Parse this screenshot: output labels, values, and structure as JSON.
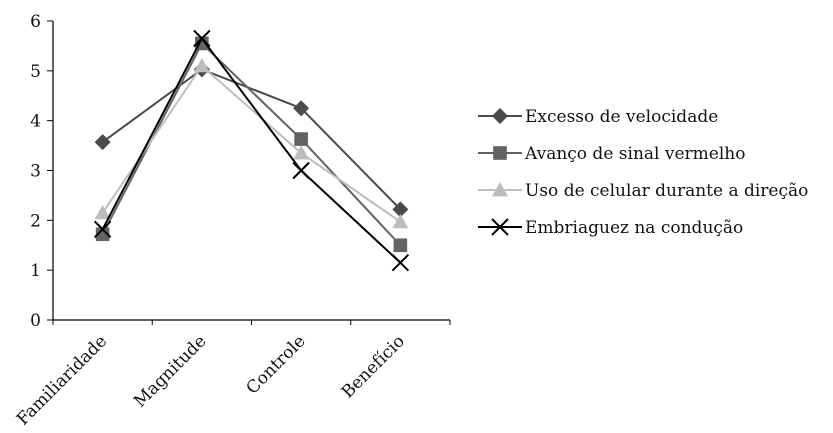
{
  "chart_data": {
    "type": "line",
    "categories": [
      "Familiaridade",
      "Magnitude",
      "Controle",
      "Benefício"
    ],
    "ylim": [
      0,
      6
    ],
    "yticks": [
      0,
      1,
      2,
      3,
      4,
      5,
      6
    ],
    "grid": false,
    "legend_position": "right",
    "title": "",
    "xlabel": "",
    "ylabel": "",
    "series": [
      {
        "name": "Excesso de velocidade",
        "values": [
          3.57,
          5.03,
          4.25,
          2.22
        ],
        "marker": "diamond",
        "color": "#4a4a4a"
      },
      {
        "name": "Avanço de sinal vermelho",
        "values": [
          1.72,
          5.55,
          3.63,
          1.5
        ],
        "marker": "square",
        "color": "#636363"
      },
      {
        "name": "Uso de celular durante a direção",
        "values": [
          2.15,
          5.1,
          3.35,
          1.97
        ],
        "marker": "triangle",
        "color": "#bdbdbd"
      },
      {
        "name": "Embriaguez na condução",
        "values": [
          1.82,
          5.65,
          3.0,
          1.15
        ],
        "marker": "x",
        "color": "#000000"
      }
    ]
  }
}
